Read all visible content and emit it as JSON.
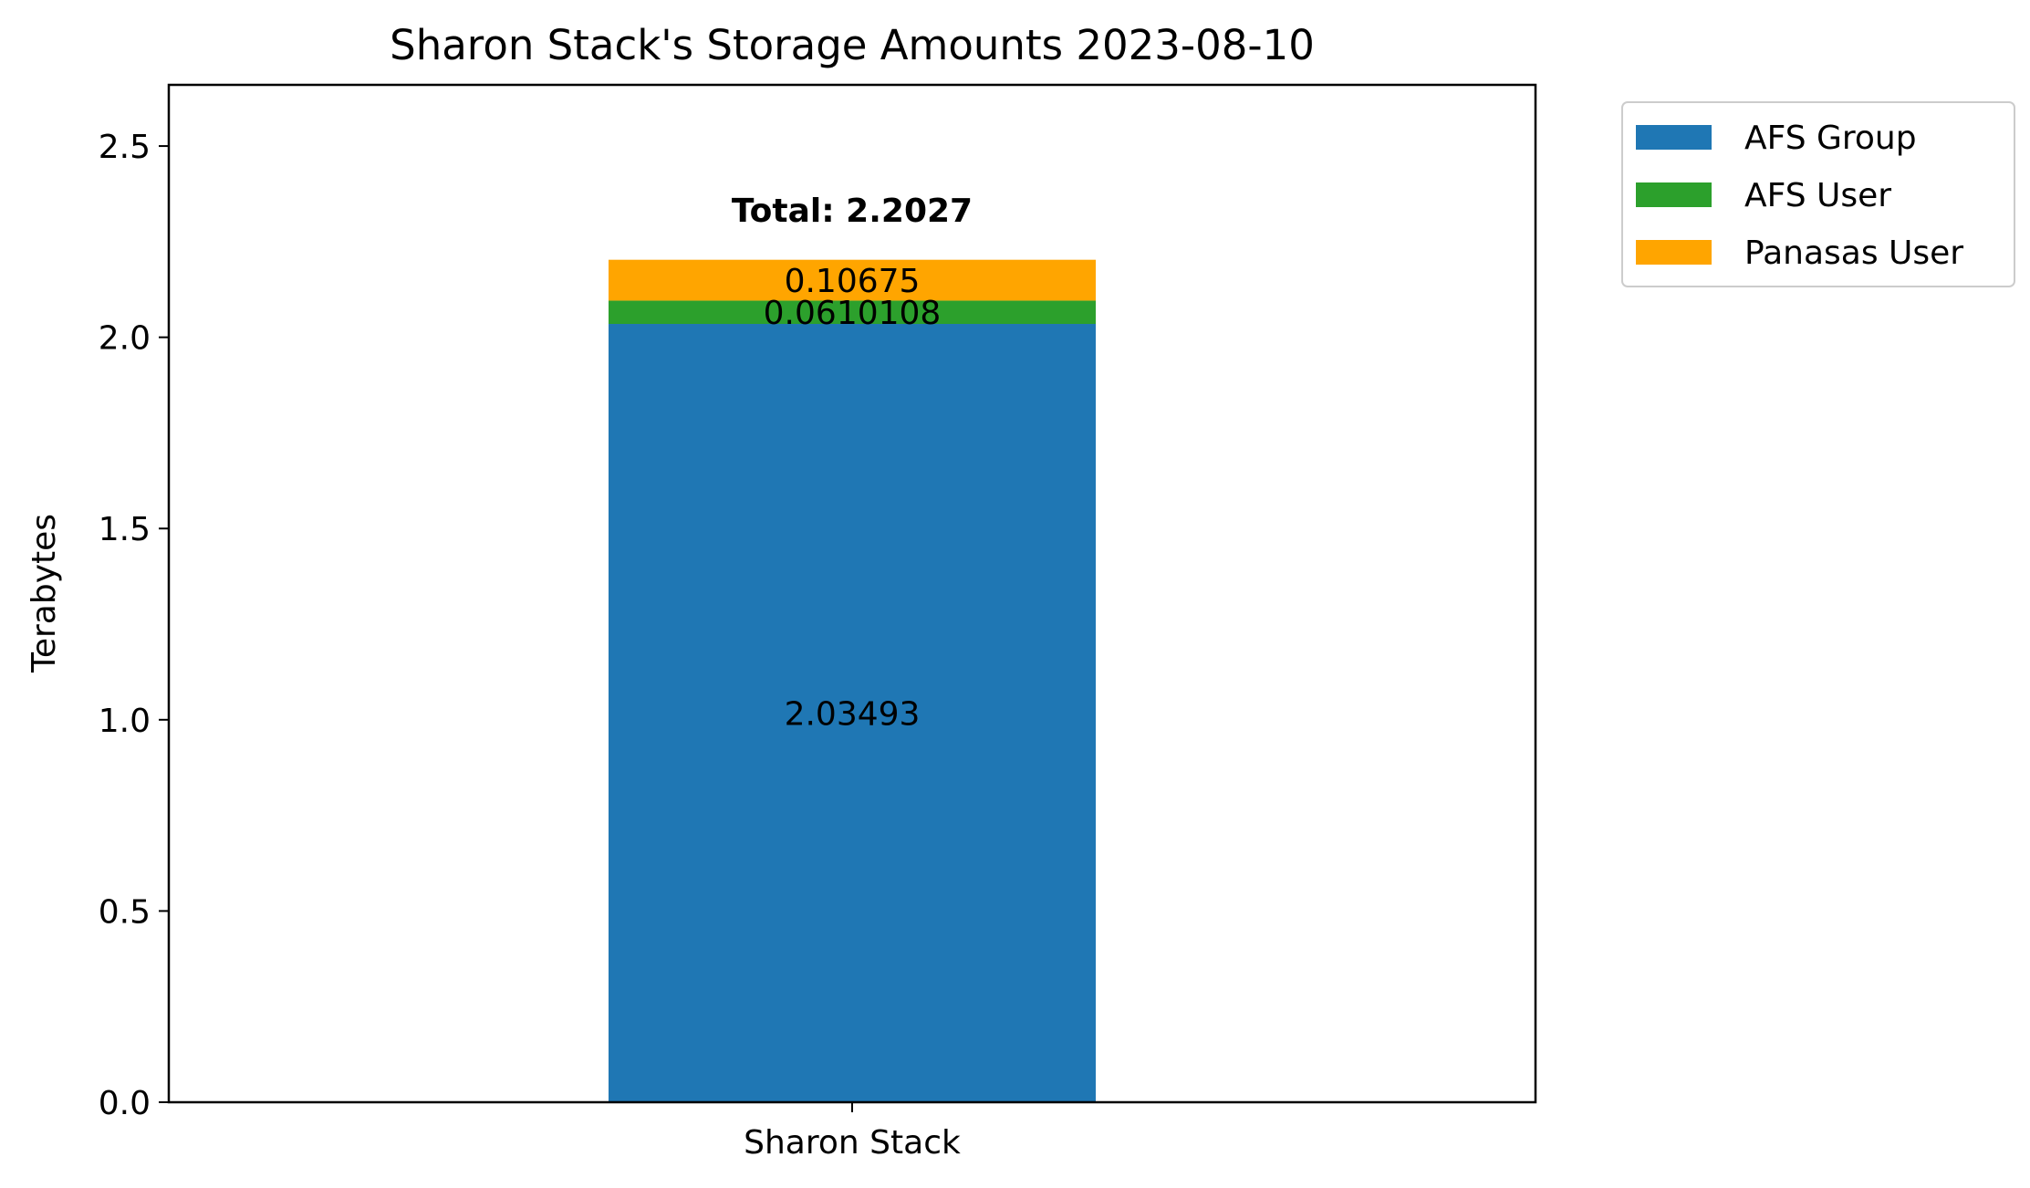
{
  "chart_data": {
    "type": "bar",
    "stacked": true,
    "title": "Sharon Stack's Storage Amounts 2023-08-10",
    "xlabel": "",
    "ylabel": "Terabytes",
    "categories": [
      "Sharon Stack"
    ],
    "ylim": [
      0,
      2.66
    ],
    "yticks": [
      "0.0",
      "0.5",
      "1.0",
      "1.5",
      "2.0",
      "2.5"
    ],
    "grid": false,
    "legend_position": "outside-right",
    "series": [
      {
        "name": "AFS Group",
        "values": [
          2.03493
        ],
        "label": "2.03493",
        "color": "#1f77b4"
      },
      {
        "name": "AFS User",
        "values": [
          0.0610108
        ],
        "label": "0.0610108",
        "color": "#2ca02c"
      },
      {
        "name": "Panasas User",
        "values": [
          0.10675
        ],
        "label": "0.10675",
        "color": "#ffa500"
      }
    ],
    "total": {
      "value": 2.2027,
      "label": "Total: 2.2027"
    }
  }
}
